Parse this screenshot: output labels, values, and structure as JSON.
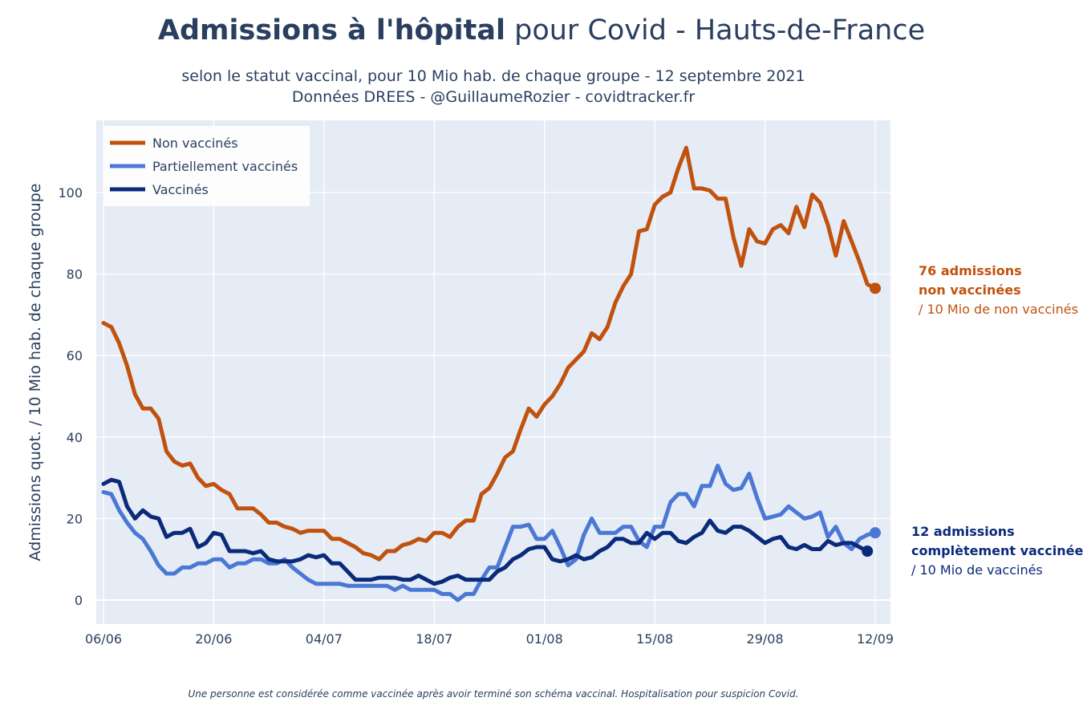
{
  "title": {
    "bold": "Admissions à l'hôpital",
    "rest": " pour Covid - Hauts-de-France"
  },
  "subtitle": {
    "line1": "selon le statut vaccinal, pour 10 Mio hab. de chaque groupe - 12 septembre 2021",
    "line2": "Données DREES - @GuillaumeRozier - covidtracker.fr"
  },
  "footnote": "Une personne est considérée comme vaccinée après avoir terminé son schéma vaccinal. Hospitalisation pour suspicion Covid.",
  "annotations": {
    "unvaccinated": {
      "line1": "76 admissions",
      "line2": "non vaccinées",
      "line3": "/ 10 Mio de non vaccinés",
      "color": "#c1520e"
    },
    "vaccinated": {
      "line1": "12 admissions",
      "line2": "complètement vaccinée",
      "line3": "/ 10 Mio de vaccinés",
      "color": "#0a2a7a"
    }
  },
  "chart_data": {
    "type": "line",
    "ylabel": "Admissions quot. / 10 Mio hab. de chaque groupe",
    "xlabel": "",
    "ylim": [
      -5,
      117
    ],
    "yticks": [
      0,
      20,
      40,
      60,
      80,
      100
    ],
    "x_start_date": "2021-06-06",
    "x_end_date": "2021-09-12",
    "xticks": [
      {
        "day": 0,
        "label": "06/06"
      },
      {
        "day": 14,
        "label": "20/06"
      },
      {
        "day": 28,
        "label": "04/07"
      },
      {
        "day": 42,
        "label": "18/07"
      },
      {
        "day": 56,
        "label": "01/08"
      },
      {
        "day": 70,
        "label": "15/08"
      },
      {
        "day": 84,
        "label": "29/08"
      },
      {
        "day": 98,
        "label": "12/09"
      }
    ],
    "legend_position": "top-left",
    "grid": true,
    "series": [
      {
        "name": "Non vaccinés",
        "color": "#c1520e",
        "values": [
          68,
          67,
          63,
          57.5,
          50.5,
          47,
          47,
          44.5,
          36.5,
          34,
          33,
          33.5,
          30,
          28,
          28.5,
          27,
          26,
          22.5,
          22.5,
          22.5,
          21,
          19,
          19,
          18,
          17.5,
          16.5,
          17,
          17,
          17,
          15,
          15,
          14,
          13,
          11.5,
          11,
          10,
          12,
          12,
          13.5,
          14,
          15,
          14.5,
          16.5,
          16.5,
          15.5,
          18,
          19.5,
          19.5,
          26,
          27.5,
          31,
          35,
          36.5,
          42,
          47,
          45,
          48,
          50,
          53,
          57,
          59,
          61,
          65.5,
          64,
          67,
          73,
          77,
          80,
          90.5,
          91,
          97,
          99,
          100,
          106,
          111,
          101,
          101,
          100.5,
          98.5,
          98.5,
          89,
          82,
          91,
          88,
          87.5,
          91,
          92,
          90,
          96.5,
          91.5,
          99.5,
          97.5,
          92,
          84.5,
          93,
          88,
          83,
          77.5,
          76.5
        ]
      },
      {
        "name": "Partiellement vaccinés",
        "color": "#4a78d4",
        "values": [
          26.5,
          26,
          22,
          19,
          16.5,
          15,
          12,
          8.5,
          6.5,
          6.5,
          8,
          8,
          9,
          9,
          10,
          10,
          8,
          9,
          9,
          10,
          10,
          9,
          9,
          10,
          8,
          6.5,
          5,
          4,
          4,
          4,
          4,
          3.5,
          3.5,
          3.5,
          3.5,
          3.5,
          3.5,
          2.5,
          3.5,
          2.5,
          2.5,
          2.5,
          2.5,
          1.5,
          1.5,
          0,
          1.5,
          1.5,
          5,
          8,
          8,
          13,
          18,
          18,
          18.5,
          15,
          15,
          17,
          13,
          8.5,
          10,
          16,
          20,
          16.5,
          16.5,
          16.5,
          18,
          18,
          14.5,
          13,
          18,
          18,
          24,
          26,
          26,
          23,
          28,
          28,
          33,
          28.5,
          27,
          27.5,
          31,
          25,
          20,
          20.5,
          21,
          23,
          21.5,
          20,
          20.5,
          21.5,
          15.5,
          18,
          14,
          12.5,
          15,
          16,
          16.5
        ]
      },
      {
        "name": "Vaccinés",
        "color": "#0a2a7a",
        "values": [
          28.5,
          29.5,
          29,
          23,
          20,
          22,
          20.5,
          20,
          15.5,
          16.5,
          16.5,
          17.5,
          13,
          14,
          16.5,
          16,
          12,
          12,
          12,
          11.5,
          12,
          10,
          9.5,
          9.5,
          9.5,
          10,
          11,
          10.5,
          11,
          9,
          9,
          7,
          5,
          5,
          5,
          5.5,
          5.5,
          5.5,
          5,
          5,
          6,
          5,
          4,
          4.5,
          5.5,
          6,
          5,
          5,
          5,
          5,
          7,
          8,
          10,
          11,
          12.5,
          13,
          13,
          10,
          9.5,
          10,
          11,
          10,
          10.5,
          12,
          13,
          15,
          15,
          14,
          14,
          16.5,
          15,
          16.5,
          16.5,
          14.5,
          14,
          15.5,
          16.5,
          19.5,
          17,
          16.5,
          18,
          18,
          17,
          15.5,
          14,
          15,
          15.5,
          13,
          12.5,
          13.5,
          12.5,
          12.5,
          14.5,
          13.5,
          14,
          14,
          13,
          12
        ]
      }
    ]
  }
}
